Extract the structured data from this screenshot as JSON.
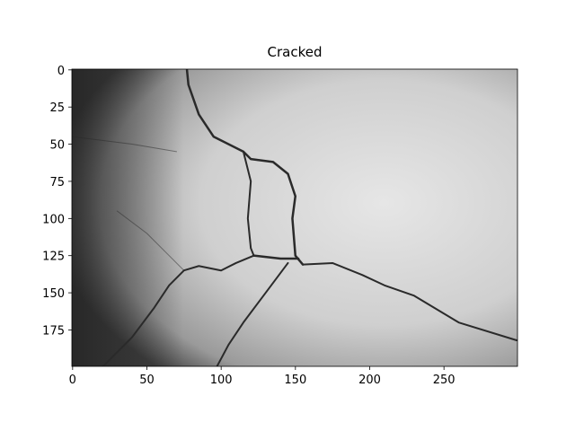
{
  "chart_data": {
    "type": "image",
    "title": "Cracked",
    "xlim": [
      -0.5,
      299.5
    ],
    "ylim": [
      199.5,
      -0.5
    ],
    "xticks": [
      0,
      50,
      100,
      150,
      200,
      250
    ],
    "yticks": [
      0,
      25,
      50,
      75,
      100,
      125,
      150,
      175
    ]
  }
}
